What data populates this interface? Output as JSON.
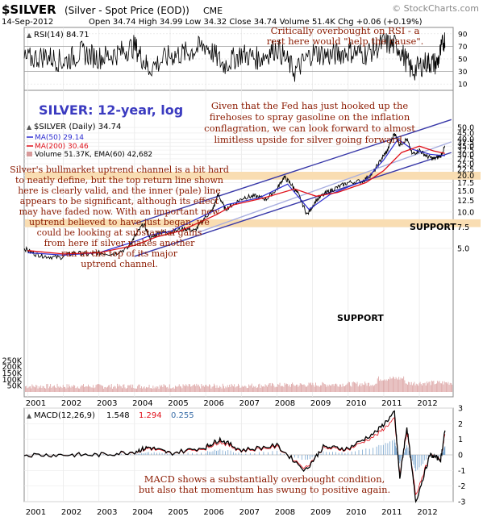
{
  "header": {
    "symbol": "$SILVER",
    "desc": "(Silver - Spot Price (EOD))",
    "exchange": "CME",
    "watermark": "© StockCharts.com",
    "date": "14-Sep-2012",
    "ohlc": "Open 34.74  High 34.99  Low 34.32  Close 34.74  Volume 51.4K  Chg +0.06 (+0.19%)",
    "up_arrow": "▲"
  },
  "rsi_panel": {
    "label": "RSI(14) 84.71",
    "ticks": [
      90,
      70,
      50,
      30,
      10
    ],
    "annotation_line1": "Critically overbought on RSI - a",
    "annotation_line2": "rest here would \"help the cause\"."
  },
  "price_panel": {
    "title": "SILVER: 12-year, log",
    "legend": {
      "main": "$SILVER (Daily) 34.74",
      "ma50": "MA(50) 29.14",
      "ma200": "MA(200) 30.46",
      "volume": "Volume 51.37K, EMA(60) 42,682"
    },
    "fed_note": [
      "Given that the Fed has just hooked up the",
      "firehoses to spray gasoline on the inflation",
      "conflagration, we can look forward to almost",
      "limitless upside for silver going forward."
    ],
    "channel_note": [
      "Silver's bullmarket uptrend channel is a bit hard",
      "to neatly define, but the top return line shown",
      "here is clearly valid, and the inner (pale) line",
      "appears to be significant, although its effect",
      "may have faded now. With an important new",
      "uptrend believed to have just began, we",
      "could be looking at substantial gains",
      "from here if silver makes another",
      "run at the top of its major",
      "uptrend channel."
    ],
    "support_label": "SUPPORT",
    "price_ticks": [
      "50.0",
      "45.0",
      "40.0",
      "37.5",
      "35.0",
      "32.5",
      "30.0",
      "27.5",
      "25.0",
      "22.5",
      "20.0",
      "17.5",
      "15.0",
      "12.5",
      "10.0",
      "7.5",
      "5.0"
    ],
    "volume_ticks": [
      "250K",
      "200K",
      "150K",
      "100K",
      "50K"
    ]
  },
  "macd_panel": {
    "label": "MACD(12,26,9)",
    "v1": "1.548",
    "v2": "1.294",
    "v3": "0.255",
    "ticks": [
      "3",
      "2",
      "1",
      "0",
      "-1",
      "-2",
      "-3"
    ],
    "note_line1": "MACD shows a substantially overbought condition,",
    "note_line2": "but also that momentum has swung to positive again."
  },
  "years": [
    "2001",
    "2002",
    "2003",
    "2004",
    "2005",
    "2006",
    "2007",
    "2008",
    "2009",
    "2010",
    "2011",
    "2012"
  ],
  "colors": {
    "price_line": "#000000",
    "ma50": "#2b2bd0",
    "ma200": "#e0101a",
    "channel": "#3838a8",
    "inner_channel": "#a8aee0",
    "support": "#f9ddb2",
    "volume": "#d89a9a",
    "text_red": "#8b1a00",
    "title_blue": "#3b3bc0"
  },
  "chart_data": {
    "type": "line",
    "series": [
      {
        "name": "$SILVER (Daily) 34.74",
        "x": [
          2000.9,
          2001.2,
          2001.5,
          2001.9,
          2002.3,
          2002.7,
          2003.0,
          2003.4,
          2003.8,
          2004.0,
          2004.25,
          2004.45,
          2004.7,
          2005.0,
          2005.4,
          2005.7,
          2005.95,
          2006.2,
          2006.35,
          2006.55,
          2006.8,
          2007.1,
          2007.4,
          2007.7,
          2008.0,
          2008.2,
          2008.4,
          2008.6,
          2008.85,
          2009.1,
          2009.4,
          2009.7,
          2010.0,
          2010.4,
          2010.7,
          2010.95,
          2011.1,
          2011.3,
          2011.45,
          2011.65,
          2011.8,
          2012.0,
          2012.2,
          2012.4,
          2012.6,
          2012.72
        ],
        "y": [
          5.0,
          4.5,
          4.3,
          4.2,
          4.6,
          4.5,
          4.6,
          4.5,
          5.0,
          6.2,
          8.0,
          6.0,
          6.8,
          6.8,
          7.3,
          7.0,
          8.8,
          10.5,
          14.0,
          10.5,
          11.8,
          13.3,
          13.5,
          12.8,
          15.5,
          19.5,
          17.0,
          14.0,
          9.5,
          12.5,
          14.5,
          16.0,
          17.5,
          18.0,
          21.0,
          28.0,
          32.0,
          45.0,
          36.0,
          40.0,
          30.0,
          32.5,
          29.0,
          27.5,
          29.0,
          34.74
        ]
      },
      {
        "name": "MA(50) 29.14",
        "x": [
          2001.0,
          2002.0,
          2003.0,
          2004.0,
          2004.5,
          2005.0,
          2006.0,
          2006.6,
          2007.5,
          2008.3,
          2008.9,
          2009.5,
          2010.5,
          2011.0,
          2011.4,
          2011.8,
          2012.3,
          2012.72
        ],
        "y": [
          4.6,
          4.4,
          4.6,
          5.7,
          6.5,
          6.9,
          9.5,
          11.5,
          13.1,
          17.0,
          10.5,
          14.0,
          18.5,
          27.0,
          40.0,
          33.0,
          30.0,
          29.14
        ]
      },
      {
        "name": "MA(200) 30.46",
        "x": [
          2001.0,
          2002.0,
          2003.0,
          2004.0,
          2004.6,
          2005.3,
          2006.3,
          2006.8,
          2007.6,
          2008.5,
          2009.1,
          2009.7,
          2010.5,
          2011.0,
          2011.5,
          2012.0,
          2012.4,
          2012.72
        ],
        "y": [
          4.8,
          4.5,
          4.6,
          5.3,
          6.2,
          7.0,
          9.5,
          11.5,
          13.0,
          15.5,
          13.5,
          14.5,
          17.5,
          22.0,
          31.0,
          35.0,
          32.0,
          30.46
        ]
      }
    ],
    "rsi": {
      "name": "RSI(14) 84.71",
      "ylim": [
        0,
        100
      ],
      "x": [
        2000.9,
        2001.5,
        2002.0,
        2002.5,
        2003.0,
        2003.5,
        2004.0,
        2004.4,
        2005.0,
        2005.5,
        2006.0,
        2006.5,
        2007.0,
        2007.5,
        2008.0,
        2008.5,
        2009.0,
        2009.5,
        2010.0,
        2010.5,
        2011.0,
        2011.4,
        2011.8,
        2012.2,
        2012.5,
        2012.72
      ],
      "y": [
        48,
        55,
        45,
        60,
        52,
        58,
        70,
        35,
        55,
        60,
        72,
        40,
        58,
        50,
        68,
        30,
        60,
        55,
        62,
        58,
        75,
        70,
        30,
        45,
        42,
        84.71
      ]
    },
    "macd": {
      "name": "MACD(12,26,9)",
      "ylim": [
        -3,
        3
      ],
      "x": [
        2000.9,
        2002.0,
        2003.0,
        2004.0,
        2004.4,
        2005.0,
        2006.0,
        2006.4,
        2007.0,
        2008.0,
        2008.8,
        2009.3,
        2010.0,
        2010.8,
        2011.3,
        2011.45,
        2011.65,
        2011.9,
        2012.3,
        2012.6,
        2012.72
      ],
      "y": [
        0.0,
        0.0,
        0.0,
        0.2,
        0.5,
        0.1,
        0.5,
        1.0,
        0.3,
        0.6,
        -1.0,
        0.5,
        0.4,
        1.5,
        2.7,
        -1.5,
        1.8,
        -3.0,
        0.0,
        -0.3,
        1.548
      ]
    },
    "channel_lines": {
      "upper": {
        "x": [
          2004.0,
          2012.9
        ],
        "y": [
          8.0,
          58.0
        ]
      },
      "lower": {
        "x": [
          2004.0,
          2012.9
        ],
        "y": [
          4.3,
          31.0
        ]
      },
      "inner": {
        "x": [
          2005.8,
          2012.9
        ],
        "y": [
          6.8,
          38.0
        ]
      }
    },
    "support_zones": [
      {
        "low": 18.5,
        "high": 21.5
      },
      {
        "low": 7.5,
        "high": 8.7
      }
    ],
    "title": "SILVER: 12-year, log",
    "ylim": [
      3.5,
      55
    ]
  }
}
